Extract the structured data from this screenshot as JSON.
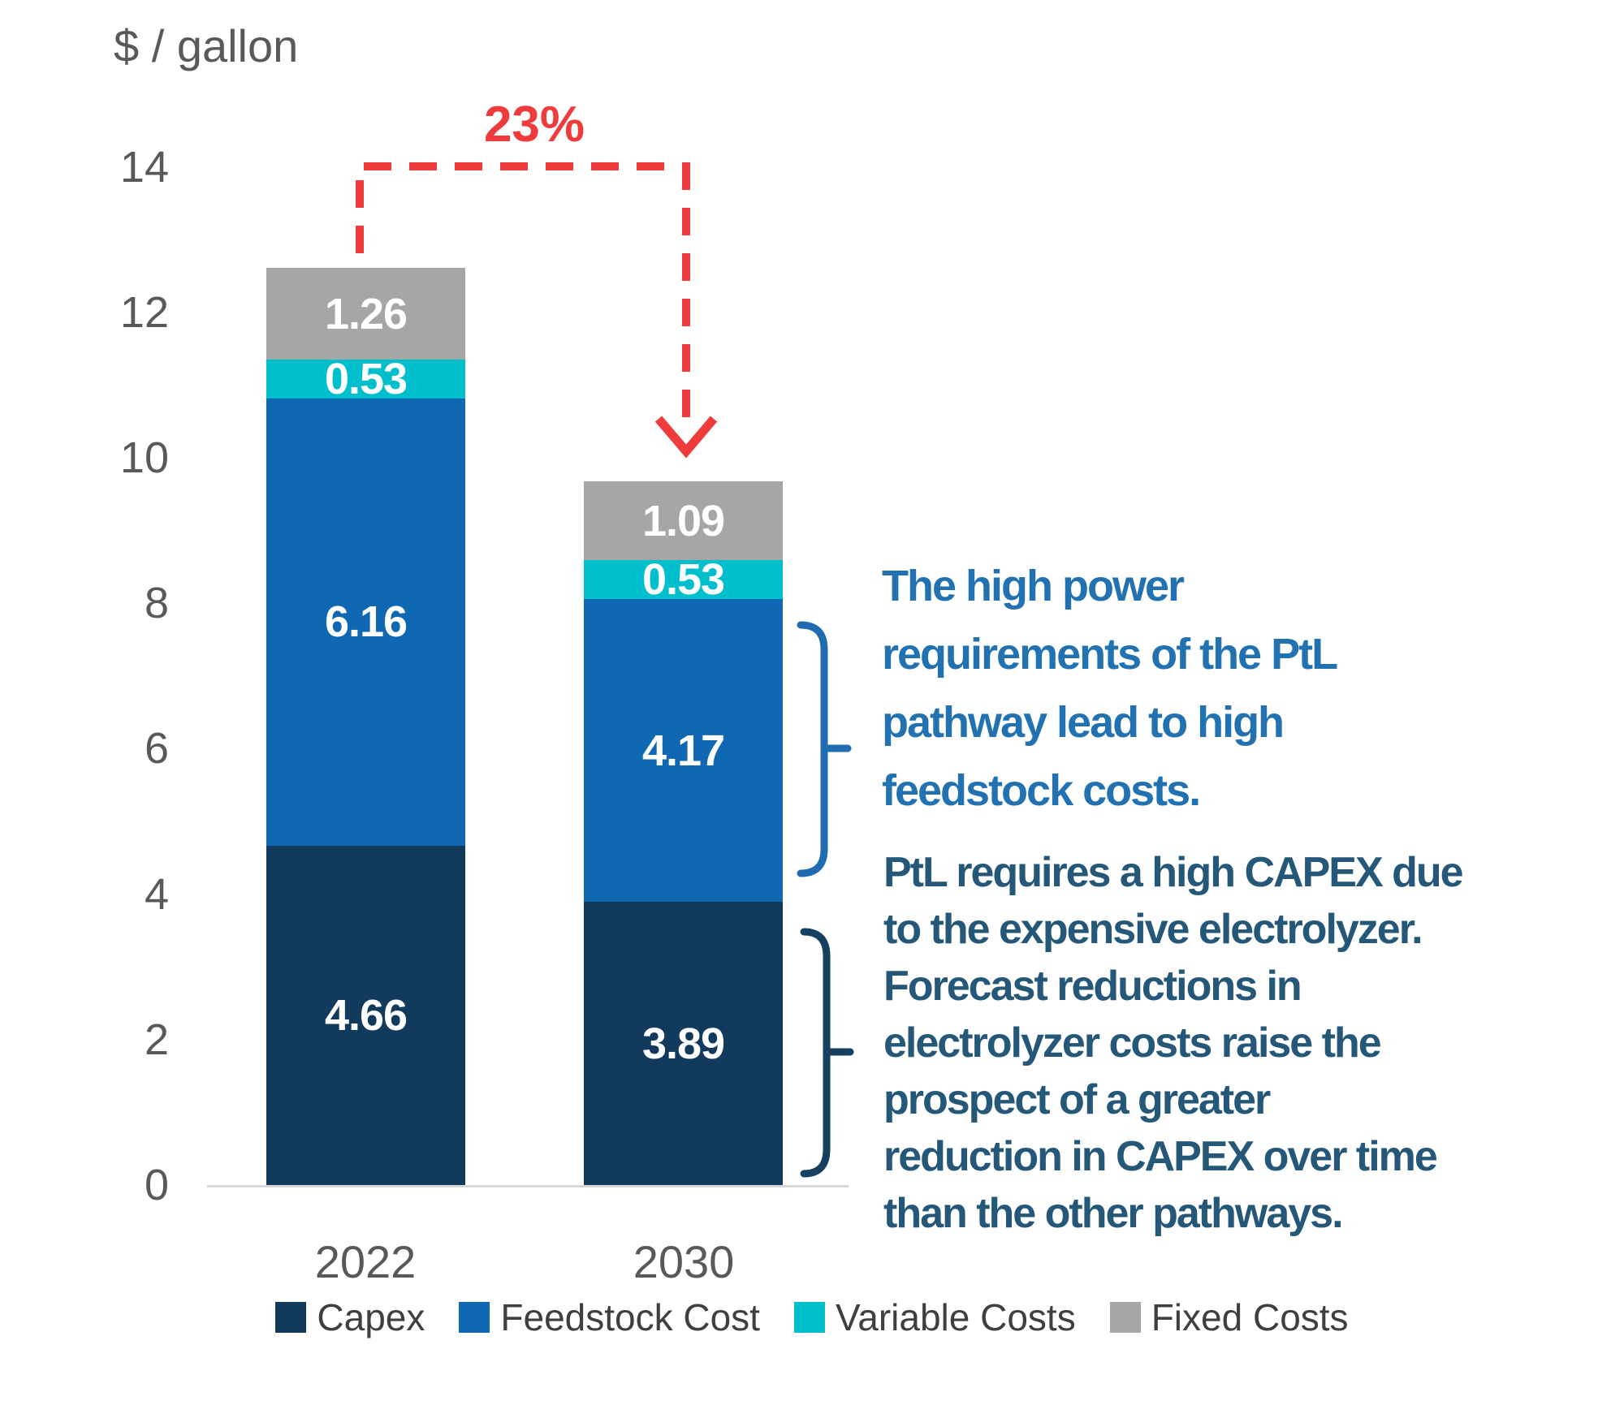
{
  "chart_data": {
    "type": "bar",
    "stacked": true,
    "unit_label": "$ / gallon",
    "categories": [
      "2022",
      "2030"
    ],
    "series": [
      {
        "name": "Capex",
        "color": "#123A5C",
        "values": [
          4.66,
          3.89
        ]
      },
      {
        "name": "Feedstock Cost",
        "color": "#1168B2",
        "values": [
          6.16,
          4.17
        ]
      },
      {
        "name": "Variable Costs",
        "color": "#00BFCD",
        "values": [
          0.53,
          0.53
        ]
      },
      {
        "name": "Fixed Costs",
        "color": "#A6A6A6",
        "values": [
          1.26,
          1.09
        ]
      }
    ],
    "totals": [
      12.61,
      9.68
    ],
    "y_ticks": [
      0,
      2,
      4,
      6,
      8,
      10,
      12,
      14
    ],
    "ylim": [
      0,
      14
    ],
    "xlabel": "",
    "ylabel": "$ / gallon",
    "grid": false,
    "legend_position": "bottom"
  },
  "annotations": {
    "reduction_label": "23%",
    "note_feedstock": "The high power\nrequirements of the PtL\npathway lead to high\nfeedstock costs.",
    "note_capex": "PtL requires a high CAPEX due\nto the expensive electrolyzer.\nForecast reductions in\nelectrolyzer costs raise the\nprospect of a greater\nreduction in CAPEX over time\nthan the other pathways.",
    "colors": {
      "arrow_red": "#EF3B3B",
      "note_feedstock_color": "#2272B2",
      "note_capex_color": "#255878",
      "brace_feedstock": "#1F6CB0",
      "brace_capex": "#15405F",
      "axis_text": "#595959",
      "legend_text": "#3F3F3F"
    }
  }
}
